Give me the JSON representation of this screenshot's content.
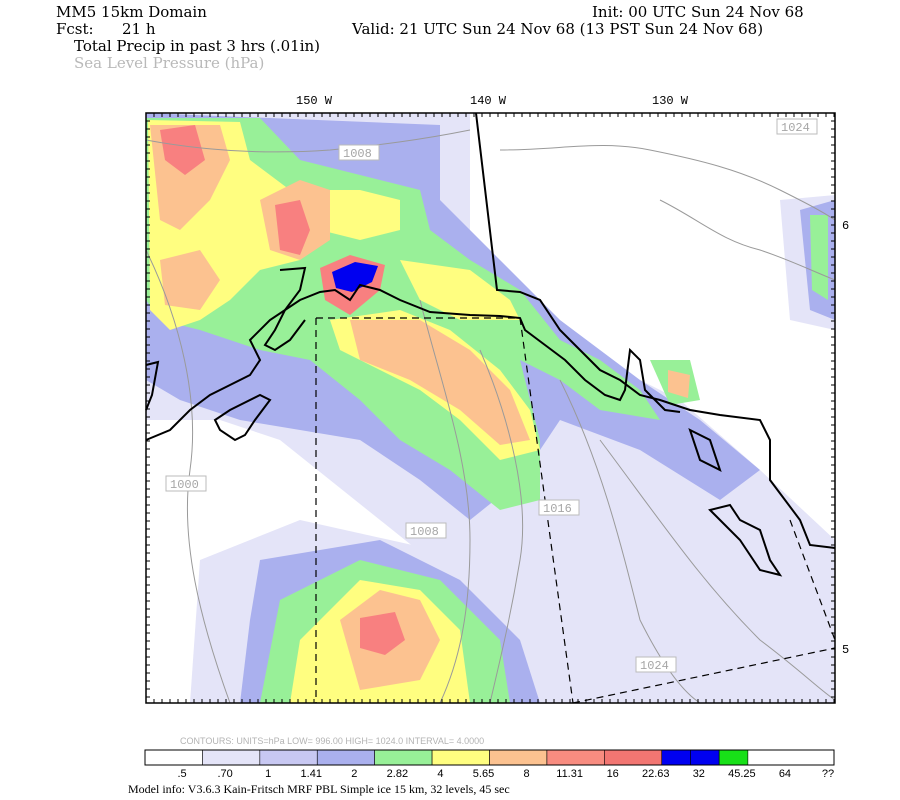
{
  "header": {
    "domain": "MM5 15km Domain",
    "fcst_label": "Fcst:",
    "fcst_value": "21 h",
    "init": "Init: 00 UTC Sun 24 Nov 68",
    "valid": "Valid: 21 UTC Sun 24 Nov 68 (13 PST Sun 24 Nov 68)",
    "field1": "Total Precip in past 3 hrs (.01in)",
    "field2": "Sea Level Pressure (hPa)"
  },
  "map": {
    "longitudes": [
      "150 W",
      "140 W",
      "130 W"
    ],
    "lat_labels": [
      "6",
      "5"
    ],
    "pressure_labels": [
      "1008",
      "1024",
      "1000",
      "1008",
      "1016",
      "1024"
    ]
  },
  "contours_info": "CONTOURS:  UNITS=hPa  LOW=  996.00        HIGH=  1024.0       INTERVAL=    4.0000",
  "colorbar": {
    "colors": [
      "#ffffff",
      "#e4e4f8",
      "#c8c8f2",
      "#aab0ee",
      "#98f098",
      "#fffe80",
      "#fcc290",
      "#f88c80",
      "#f27672",
      "#0000f0",
      "#0000f0",
      "#18e018"
    ],
    "labels": [
      ".5",
      ".70",
      "1",
      "1.41",
      "2",
      "2.82",
      "4",
      "5.65",
      "8",
      "11.31",
      "16",
      "22.63",
      "32",
      "45.25",
      "64",
      "??"
    ]
  },
  "footer": "Model info: V3.6.3 Kain-Fritsch MRF PBL    Simple ice    15 km,  32 levels,   45 sec"
}
